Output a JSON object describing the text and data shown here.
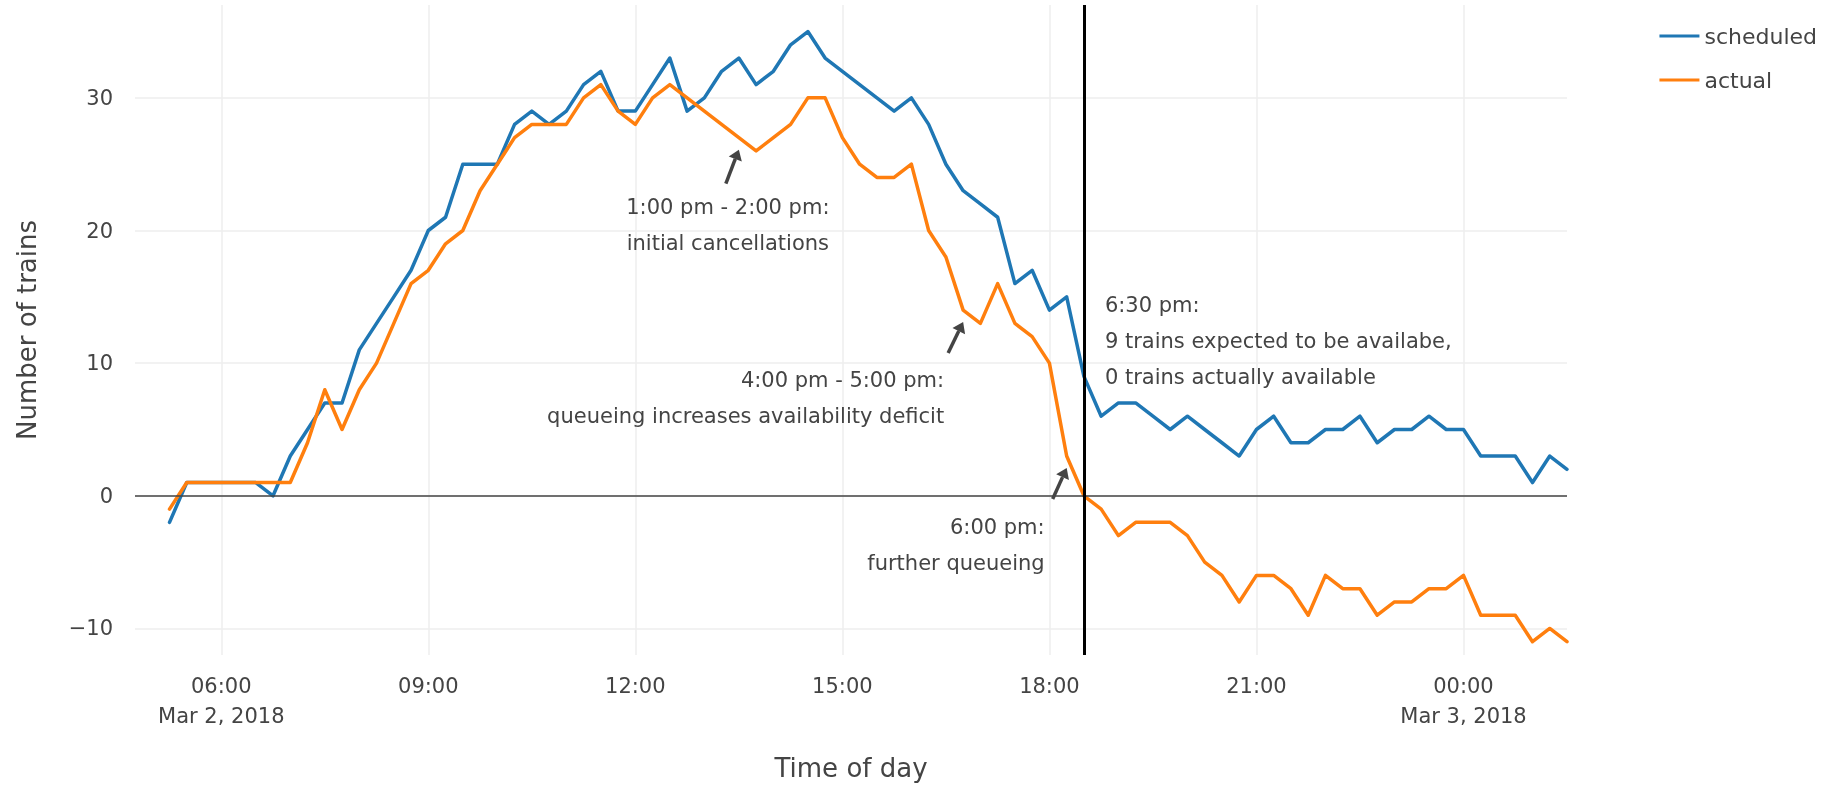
{
  "chart_data": {
    "type": "line",
    "xlabel": "Time of day",
    "ylabel": "Number of trains",
    "x": [
      "2018-03-02T05:15",
      "2018-03-02T05:30",
      "2018-03-02T05:45",
      "2018-03-02T06:00",
      "2018-03-02T06:15",
      "2018-03-02T06:30",
      "2018-03-02T06:45",
      "2018-03-02T07:00",
      "2018-03-02T07:15",
      "2018-03-02T07:30",
      "2018-03-02T07:45",
      "2018-03-02T08:00",
      "2018-03-02T08:15",
      "2018-03-02T08:30",
      "2018-03-02T08:45",
      "2018-03-02T09:00",
      "2018-03-02T09:15",
      "2018-03-02T09:30",
      "2018-03-02T09:45",
      "2018-03-02T10:00",
      "2018-03-02T10:15",
      "2018-03-02T10:30",
      "2018-03-02T10:45",
      "2018-03-02T11:00",
      "2018-03-02T11:15",
      "2018-03-02T11:30",
      "2018-03-02T11:45",
      "2018-03-02T12:00",
      "2018-03-02T12:15",
      "2018-03-02T12:30",
      "2018-03-02T12:45",
      "2018-03-02T13:00",
      "2018-03-02T13:15",
      "2018-03-02T13:30",
      "2018-03-02T13:45",
      "2018-03-02T14:00",
      "2018-03-02T14:15",
      "2018-03-02T14:30",
      "2018-03-02T14:45",
      "2018-03-02T15:00",
      "2018-03-02T15:15",
      "2018-03-02T15:30",
      "2018-03-02T15:45",
      "2018-03-02T16:00",
      "2018-03-02T16:15",
      "2018-03-02T16:30",
      "2018-03-02T16:45",
      "2018-03-02T17:00",
      "2018-03-02T17:15",
      "2018-03-02T17:30",
      "2018-03-02T17:45",
      "2018-03-02T18:00",
      "2018-03-02T18:15",
      "2018-03-02T18:30",
      "2018-03-02T18:45",
      "2018-03-02T19:00",
      "2018-03-02T19:15",
      "2018-03-02T19:30",
      "2018-03-02T19:45",
      "2018-03-02T20:00",
      "2018-03-02T20:15",
      "2018-03-02T20:30",
      "2018-03-02T20:45",
      "2018-03-02T21:00",
      "2018-03-02T21:15",
      "2018-03-02T21:30",
      "2018-03-02T21:45",
      "2018-03-02T22:00",
      "2018-03-02T22:15",
      "2018-03-02T22:30",
      "2018-03-02T22:45",
      "2018-03-02T23:00",
      "2018-03-02T23:15",
      "2018-03-02T23:30",
      "2018-03-02T23:45",
      "2018-03-03T00:00",
      "2018-03-03T00:15",
      "2018-03-03T00:30",
      "2018-03-03T00:45",
      "2018-03-03T01:00",
      "2018-03-03T01:15",
      "2018-03-03T01:30"
    ],
    "series": [
      {
        "name": "scheduled",
        "color": "#1f77b4",
        "values": [
          -2,
          1,
          1,
          1,
          1,
          1,
          0,
          3,
          5,
          7,
          7,
          11,
          13,
          15,
          17,
          20,
          21,
          25,
          25,
          25,
          28,
          29,
          28,
          29,
          31,
          32,
          29,
          29,
          31,
          33,
          29,
          30,
          32,
          33,
          31,
          32,
          34,
          35,
          33,
          32,
          31,
          30,
          29,
          30,
          28,
          25,
          23,
          22,
          21,
          16,
          17,
          14,
          15,
          9,
          6,
          7,
          7,
          6,
          5,
          6,
          5,
          4,
          3,
          5,
          6,
          4,
          4,
          5,
          5,
          6,
          4,
          5,
          5,
          6,
          5,
          5,
          3,
          3,
          3,
          1,
          3,
          2
        ]
      },
      {
        "name": "actual",
        "color": "#ff7f0e",
        "values": [
          -1,
          1,
          1,
          1,
          1,
          1,
          1,
          1,
          4,
          8,
          5,
          8,
          10,
          13,
          16,
          17,
          19,
          20,
          23,
          25,
          27,
          28,
          28,
          28,
          30,
          31,
          29,
          28,
          30,
          31,
          30,
          29,
          28,
          27,
          26,
          27,
          28,
          30,
          30,
          27,
          25,
          24,
          24,
          25,
          20,
          18,
          14,
          13,
          16,
          13,
          12,
          10,
          3,
          0,
          -1,
          -3,
          -2,
          -2,
          -2,
          -3,
          -5,
          -6,
          -8,
          -6,
          -6,
          -7,
          -9,
          -6,
          -7,
          -7,
          -9,
          -8,
          -8,
          -7,
          -7,
          -6,
          -9,
          -9,
          -9,
          -11,
          -10,
          -11
        ]
      }
    ],
    "xlim": [
      "2018-03-02T04:45",
      "2018-03-03T01:30"
    ],
    "xticks": [
      {
        "value": "2018-03-02T06:00",
        "label": "06:00\nMar 2, 2018"
      },
      {
        "value": "2018-03-02T09:00",
        "label": "09:00"
      },
      {
        "value": "2018-03-02T12:00",
        "label": "12:00"
      },
      {
        "value": "2018-03-02T15:00",
        "label": "15:00"
      },
      {
        "value": "2018-03-02T18:00",
        "label": "18:00"
      },
      {
        "value": "2018-03-02T21:00",
        "label": "21:00"
      },
      {
        "value": "2018-03-03T00:00",
        "label": "00:00\nMar 3, 2018"
      }
    ],
    "ylim": [
      -12,
      37
    ],
    "yticks": [
      -10,
      0,
      10,
      20,
      30
    ],
    "grid": true,
    "legend": "top right",
    "marker": "none",
    "line_style": "solid",
    "ref_lines": [
      {
        "axis": "y",
        "value": 0,
        "color": "#444444"
      },
      {
        "axis": "x",
        "value": "2018-03-02T18:30",
        "color": "#000000",
        "label": "6:30 pm:\n9 trains expected to be availabe,\n0 trains actually available"
      }
    ],
    "annotations": [
      {
        "text": "1:00 pm - 2:00 pm:\ninitial cancellations",
        "x": "2018-03-02T13:30",
        "y": 27
      },
      {
        "text": "4:00 pm - 5:00 pm:\nqueueing increases availability deficit",
        "x": "2018-03-02T16:45",
        "y": 14
      },
      {
        "text": "6:00 pm:\nfurther queueing",
        "x": "2018-03-02T18:15",
        "y": 3
      }
    ]
  }
}
